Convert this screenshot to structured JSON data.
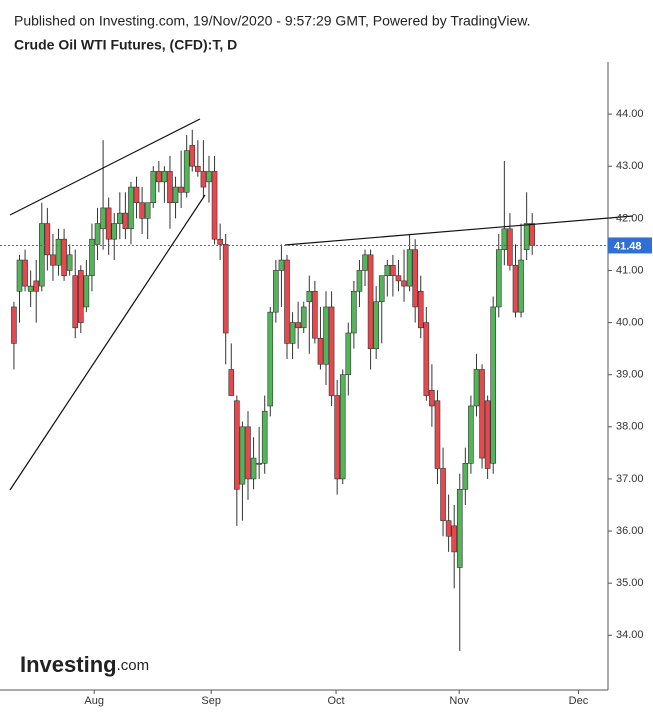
{
  "header": {
    "published": "Published on Investing.com, 19/Nov/2020 - 9:57:29 GMT, Powered by TradingView.",
    "symbol": "Crude Oil WTI Futures, (CFD):T, D"
  },
  "logo": {
    "name": "Investing",
    "suffix": ".com"
  },
  "chart_data": {
    "type": "candlestick",
    "up_color": "#53b45a",
    "down_color": "#e5484d",
    "last_price": 41.48,
    "last_price_color": "#2f6fd6",
    "categories": [
      null,
      null,
      null,
      null,
      null,
      null,
      null,
      null,
      null,
      null,
      null,
      null,
      null,
      null,
      null,
      null,
      null,
      null,
      null,
      null,
      null,
      null,
      null,
      null,
      null,
      null,
      null,
      null,
      null,
      null,
      null,
      null,
      null,
      null,
      null,
      null,
      null,
      null,
      null,
      null,
      null,
      null,
      null,
      null,
      null,
      null,
      null,
      null,
      null,
      null,
      null,
      null,
      null,
      null,
      null,
      null,
      null,
      null,
      null,
      null,
      null,
      null,
      null,
      null,
      null,
      null,
      null,
      null,
      null,
      null,
      null,
      null,
      null,
      null,
      null,
      null,
      null,
      null,
      null,
      null,
      null,
      null,
      null,
      null,
      null,
      null,
      null,
      null,
      null,
      null,
      null,
      null,
      null,
      null
    ],
    "open": [
      40.3,
      40.6,
      41.2,
      40.6,
      40.8,
      40.7,
      41.9,
      41.3,
      41.1,
      41.6,
      41.0,
      40.9,
      41.0,
      40.3,
      40.9,
      41.5,
      41.8,
      42.2,
      41.6,
      41.9,
      42.1,
      41.8,
      42.6,
      42.3,
      42.0,
      42.3,
      42.9,
      42.7,
      42.9,
      42.3,
      42.6,
      42.5,
      43.4,
      43.0,
      42.9,
      42.7,
      42.9,
      41.6,
      41.5,
      39.1,
      38.5,
      36.9,
      38.0,
      37.0,
      37.3,
      37.3,
      38.4,
      40.2,
      41.0,
      41.2,
      39.6,
      40.0,
      39.9,
      40.4,
      40.6,
      39.7,
      39.2,
      40.3,
      38.6,
      37.0,
      39.0,
      39.8,
      40.6,
      41.0,
      41.3,
      39.5,
      40.4,
      40.9,
      41.1,
      40.9,
      40.8,
      40.7,
      41.4,
      40.6,
      40.0,
      38.7,
      38.5,
      37.2,
      36.2,
      36.1,
      35.3,
      36.8,
      37.3,
      38.4,
      39.1,
      38.5,
      37.3,
      40.3,
      41.4,
      41.8,
      41.1,
      40.2,
      41.4,
      41.9
    ],
    "high": [
      40.4,
      41.3,
      41.4,
      41.0,
      41.2,
      42.3,
      42.2,
      41.7,
      41.8,
      41.8,
      41.5,
      41.4,
      41.1,
      41.2,
      41.9,
      42.2,
      43.5,
      42.4,
      42.1,
      42.5,
      42.5,
      42.7,
      42.8,
      42.6,
      42.3,
      43.0,
      43.1,
      43.0,
      43.2,
      42.8,
      43.3,
      43.6,
      43.7,
      43.5,
      43.5,
      43.2,
      43.2,
      41.9,
      41.7,
      39.6,
      38.6,
      38.1,
      38.3,
      37.8,
      38.0,
      38.6,
      40.3,
      41.2,
      41.5,
      41.3,
      40.2,
      40.4,
      40.4,
      40.9,
      40.8,
      40.3,
      40.6,
      40.6,
      38.9,
      39.1,
      40.0,
      40.8,
      41.2,
      41.4,
      41.4,
      40.7,
      40.9,
      41.2,
      41.3,
      41.2,
      41.4,
      41.7,
      41.6,
      40.9,
      40.3,
      39.2,
      38.7,
      37.6,
      36.7,
      36.5,
      37.1,
      37.6,
      38.6,
      39.4,
      39.2,
      38.6,
      40.5,
      41.7,
      43.1,
      42.1,
      41.5,
      41.9,
      42.5,
      42.1
    ],
    "low": [
      39.1,
      40.0,
      40.6,
      40.3,
      40.0,
      40.6,
      41.0,
      40.8,
      40.9,
      40.8,
      40.9,
      39.7,
      39.8,
      40.2,
      40.6,
      41.2,
      41.4,
      41.3,
      41.2,
      41.6,
      41.6,
      41.5,
      42.0,
      41.7,
      41.6,
      42.2,
      42.5,
      42.3,
      41.8,
      42.0,
      42.2,
      42.4,
      42.9,
      42.8,
      42.4,
      42.3,
      41.5,
      41.2,
      39.2,
      38.6,
      36.1,
      36.2,
      36.6,
      36.8,
      37.0,
      37.1,
      38.2,
      40.0,
      40.3,
      39.3,
      39.3,
      39.5,
      39.8,
      39.4,
      39.6,
      39.1,
      38.8,
      38.4,
      36.7,
      36.9,
      38.6,
      39.5,
      40.3,
      40.7,
      39.1,
      39.3,
      39.6,
      40.5,
      40.5,
      40.6,
      40.4,
      40.6,
      40.0,
      39.7,
      38.5,
      38.0,
      36.9,
      35.9,
      35.6,
      34.9,
      33.7,
      36.5,
      37.1,
      38.2,
      37.2,
      37.0,
      37.1,
      40.1,
      41.1,
      41.0,
      40.1,
      40.1,
      41.2,
      41.3
    ],
    "close": [
      39.6,
      41.2,
      40.7,
      40.7,
      40.6,
      41.9,
      41.3,
      41.1,
      41.6,
      40.9,
      41.3,
      39.9,
      40.0,
      40.9,
      41.6,
      41.9,
      42.2,
      41.6,
      41.9,
      42.1,
      41.8,
      42.6,
      42.3,
      42.0,
      42.3,
      42.9,
      42.7,
      42.9,
      42.3,
      42.6,
      42.5,
      43.3,
      43.0,
      42.9,
      42.6,
      42.9,
      41.6,
      41.5,
      39.8,
      38.6,
      36.8,
      38.0,
      37.0,
      37.4,
      37.3,
      38.3,
      40.2,
      41.0,
      41.2,
      39.6,
      40.0,
      39.9,
      40.3,
      40.6,
      39.7,
      39.2,
      40.3,
      38.6,
      37.0,
      39.0,
      39.8,
      40.6,
      41.0,
      41.3,
      39.5,
      40.4,
      40.9,
      41.1,
      40.9,
      40.8,
      40.7,
      41.4,
      40.3,
      39.9,
      38.6,
      38.4,
      37.2,
      36.2,
      35.9,
      35.6,
      36.8,
      37.3,
      38.4,
      39.1,
      37.4,
      37.2,
      40.3,
      41.4,
      41.8,
      41.1,
      40.2,
      41.2,
      41.9,
      41.48
    ],
    "ylim": [
      32.95,
      45.0
    ],
    "yticks": [
      {
        "value": 34,
        "label": "34.00"
      },
      {
        "value": 35,
        "label": "35.00"
      },
      {
        "value": 36,
        "label": "36.00"
      },
      {
        "value": 37,
        "label": "37.00"
      },
      {
        "value": 38,
        "label": "38.00"
      },
      {
        "value": 39,
        "label": "39.00"
      },
      {
        "value": 40,
        "label": "40.00"
      },
      {
        "value": 41,
        "label": "41.00"
      },
      {
        "value": 42,
        "label": "42.00"
      },
      {
        "value": 43,
        "label": "43.00"
      },
      {
        "value": 44,
        "label": "44.00"
      }
    ],
    "xlim": [
      -2.5,
      106.6
    ],
    "xticks": [
      {
        "value": 14.4,
        "label": "Aug"
      },
      {
        "value": 35.4,
        "label": "Sep"
      },
      {
        "value": 57.8,
        "label": "Oct"
      },
      {
        "value": 79.9,
        "label": "Nov"
      },
      {
        "value": 101.3,
        "label": "Dec"
      }
    ]
  }
}
